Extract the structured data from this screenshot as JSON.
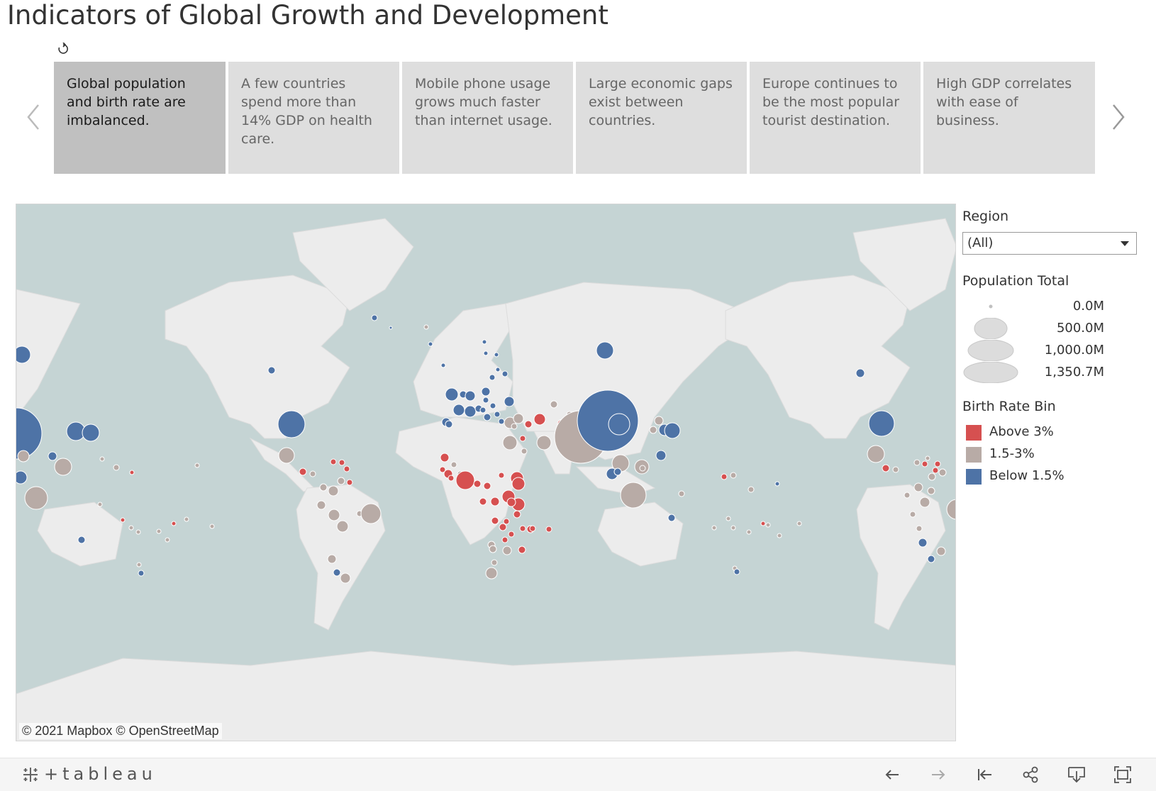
{
  "title": "Indicators of Global Growth and Development",
  "story_points": [
    {
      "label": "Global population and birth rate are imbalanced.",
      "active": true
    },
    {
      "label": "A few countries spend more than 14% GDP on health care.",
      "active": false
    },
    {
      "label": "Mobile phone usage grows much faster than internet usage.",
      "active": false
    },
    {
      "label": "Large economic gaps exist between countries.",
      "active": false
    },
    {
      "label": "Europe continues to be the most popular tourist destination.",
      "active": false
    },
    {
      "label": "High GDP correlates with ease of business.",
      "active": false
    }
  ],
  "map": {
    "attribution": "© 2021 Mapbox © OpenStreetMap"
  },
  "filters": {
    "region_label": "Region",
    "region_value": "(All)"
  },
  "size_legend": {
    "title": "Population Total",
    "items": [
      "0.0M",
      "500.0M",
      "1,000.0M",
      "1,350.7M"
    ]
  },
  "color_legend": {
    "title": "Birth Rate Bin",
    "items": [
      {
        "label": "Above 3%",
        "color": "#d65050"
      },
      {
        "label": "1.5-3%",
        "color": "#b8aba6"
      },
      {
        "label": "Below 1.5%",
        "color": "#4e73a6"
      }
    ]
  },
  "colors": {
    "ocean": "#c5d4d4",
    "land": "#eeeeee",
    "high": "#d65050",
    "mid": "#b8aba6",
    "low": "#4e73a6"
  },
  "toolbar": {
    "brand": "+tableau",
    "icons": [
      "undo-icon",
      "redo-icon",
      "revert-icon",
      "share-icon",
      "download-icon",
      "fullscreen-icon"
    ]
  }
}
